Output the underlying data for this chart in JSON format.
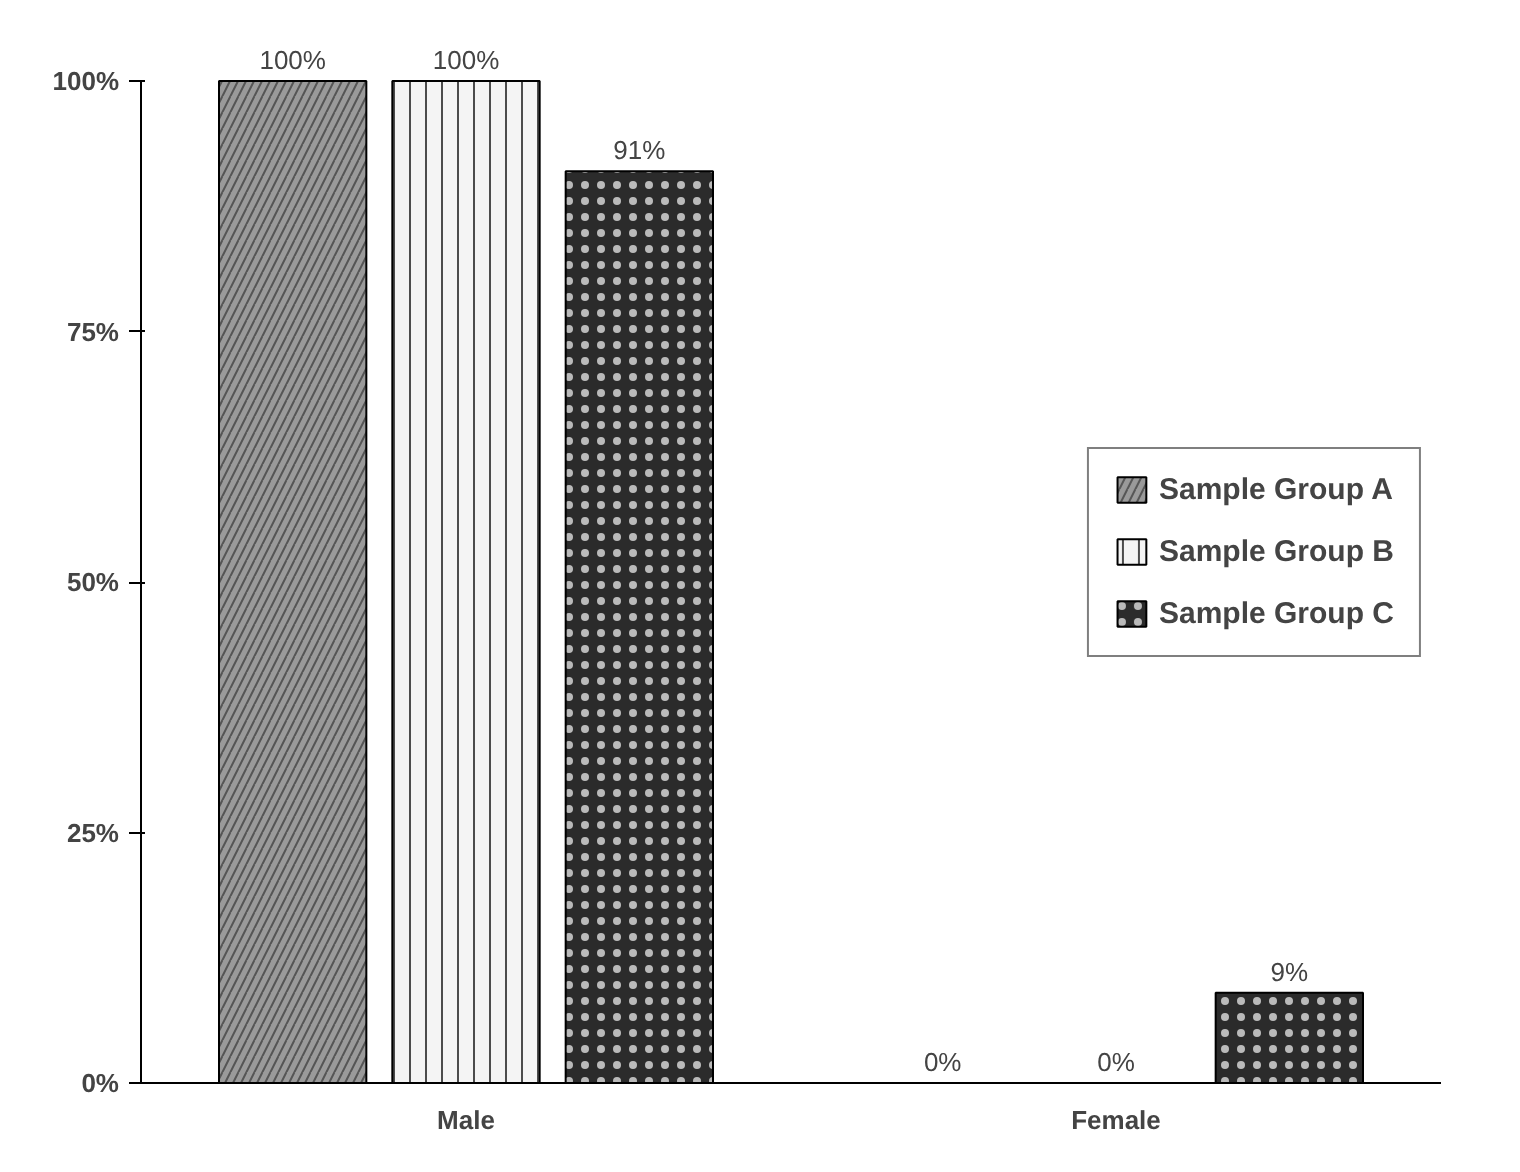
{
  "chart_data": {
    "type": "bar",
    "categories": [
      "Male",
      "Female"
    ],
    "series": [
      {
        "name": "Sample Group A",
        "color": "#9a9a9a",
        "values": [
          100,
          0
        ],
        "value_labels": [
          "100%",
          "0%"
        ]
      },
      {
        "name": "Sample Group B",
        "color": "#f4f4f4",
        "values": [
          100,
          0
        ],
        "value_labels": [
          "100%",
          "0%"
        ]
      },
      {
        "name": "Sample Group C",
        "color": "#2b2b2b",
        "values": [
          91,
          9
        ],
        "value_labels": [
          "91%",
          "9%"
        ]
      }
    ],
    "ylim": [
      0,
      100
    ],
    "yticks": [
      {
        "value": 0,
        "label": "0%"
      },
      {
        "value": 25,
        "label": "25%"
      },
      {
        "value": 50,
        "label": "50%"
      },
      {
        "value": 75,
        "label": "75%"
      },
      {
        "value": 100,
        "label": "100%"
      }
    ],
    "grid": false,
    "legend": "right"
  }
}
